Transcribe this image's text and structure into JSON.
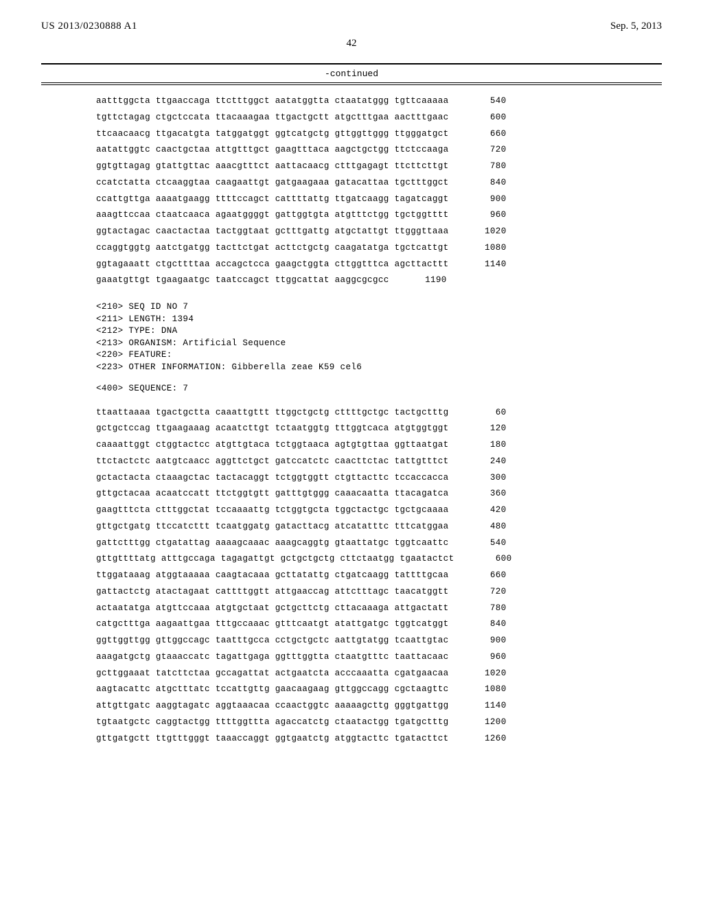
{
  "header": {
    "pub_number": "US 2013/0230888 A1",
    "pub_date": "Sep. 5, 2013",
    "page": "42"
  },
  "continued_label": "-continued",
  "sequence1": {
    "rows": [
      {
        "groups": "aatttggcta ttgaaccaga ttctttggct aatatggtta ctaatatggg tgttcaaaaa",
        "pos": "540"
      },
      {
        "groups": "tgttctagag ctgctccata ttacaaagaa ttgactgctt atgctttgaa aactttgaac",
        "pos": "600"
      },
      {
        "groups": "ttcaacaacg ttgacatgta tatggatggt ggtcatgctg gttggttggg ttgggatgct",
        "pos": "660"
      },
      {
        "groups": "aatattggtc caactgctaa attgtttgct gaagtttaca aagctgctgg ttctccaaga",
        "pos": "720"
      },
      {
        "groups": "ggtgttagag gtattgttac aaacgtttct aattacaacg ctttgagagt ttcttcttgt",
        "pos": "780"
      },
      {
        "groups": "ccatctatta ctcaaggtaa caagaattgt gatgaagaaa gatacattaa tgctttggct",
        "pos": "840"
      },
      {
        "groups": "ccattgttga aaaatgaagg ttttccagct cattttattg ttgatcaagg tagatcaggt",
        "pos": "900"
      },
      {
        "groups": "aaagttccaa ctaatcaaca agaatggggt gattggtgta atgtttctgg tgctggtttt",
        "pos": "960"
      },
      {
        "groups": "ggtactagac caactactaa tactggtaat gctttgattg atgctattgt ttgggttaaa",
        "pos": "1020"
      },
      {
        "groups": "ccaggtggtg aatctgatgg tacttctgat acttctgctg caagatatga tgctcattgt",
        "pos": "1080"
      },
      {
        "groups": "ggtagaaatt ctgcttttaa accagctcca gaagctggta cttggtttca agcttacttt",
        "pos": "1140"
      },
      {
        "groups": "gaaatgttgt tgaagaatgc taatccagct ttggcattat aaggcgcgcc",
        "pos": "1190"
      }
    ]
  },
  "meta": {
    "lines": [
      "<210> SEQ ID NO 7",
      "<211> LENGTH: 1394",
      "<212> TYPE: DNA",
      "<213> ORGANISM: Artificial Sequence",
      "<220> FEATURE:",
      "<223> OTHER INFORMATION: Gibberella zeae K59 cel6"
    ],
    "sequence_label": "<400> SEQUENCE: 7"
  },
  "sequence2": {
    "rows": [
      {
        "groups": "ttaattaaaa tgactgctta caaattgttt ttggctgctg cttttgctgc tactgctttg",
        "pos": "60"
      },
      {
        "groups": "gctgctccag ttgaagaaag acaatcttgt tctaatggtg tttggtcaca atgtggtggt",
        "pos": "120"
      },
      {
        "groups": "caaaattggt ctggtactcc atgttgtaca tctggtaaca agtgtgttaa ggttaatgat",
        "pos": "180"
      },
      {
        "groups": "ttctactctc aatgtcaacc aggttctgct gatccatctc caacttctac tattgtttct",
        "pos": "240"
      },
      {
        "groups": "gctactacta ctaaagctac tactacaggt tctggtggtt ctgttacttc tccaccacca",
        "pos": "300"
      },
      {
        "groups": "gttgctacaa acaatccatt ttctggtgtt gatttgtggg caaacaatta ttacagatca",
        "pos": "360"
      },
      {
        "groups": "gaagtttcta ctttggctat tccaaaattg tctggtgcta tggctactgc tgctgcaaaa",
        "pos": "420"
      },
      {
        "groups": "gttgctgatg ttccatcttt tcaatggatg gatacttacg atcatatttc tttcatggaa",
        "pos": "480"
      },
      {
        "groups": "gattctttgg ctgatattag aaaagcaaac aaagcaggtg gtaattatgc tggtcaattc",
        "pos": "540"
      },
      {
        "groups": "gttgttttatg atttgccaga tagagattgt gctgctgctg cttctaatgg tgaatactct",
        "pos": "600"
      },
      {
        "groups": "ttggataaag atggtaaaaa caagtacaaa gcttatattg ctgatcaagg tattttgcaa",
        "pos": "660"
      },
      {
        "groups": "gattactctg atactagaat cattttggtt attgaaccag attctttagc taacatggtt",
        "pos": "720"
      },
      {
        "groups": "actaatatga atgttccaaa atgtgctaat gctgcttctg cttacaaaga attgactatt",
        "pos": "780"
      },
      {
        "groups": "catgctttga aagaattgaa tttgccaaac gtttcaatgt atattgatgc tggtcatggt",
        "pos": "840"
      },
      {
        "groups": "ggttggttgg gttggccagc taatttgcca cctgctgctc aattgtatgg tcaattgtac",
        "pos": "900"
      },
      {
        "groups": "aaagatgctg gtaaaccatc tagattgaga ggtttggtta ctaatgtttc taattacaac",
        "pos": "960"
      },
      {
        "groups": "gcttggaaat tatcttctaa gccagattat actgaatcta acccaaatta cgatgaacaa",
        "pos": "1020"
      },
      {
        "groups": "aagtacattc atgctttatc tccattgttg gaacaagaag gttggccagg cgctaagttc",
        "pos": "1080"
      },
      {
        "groups": "attgttgatc aaggtagatc aggtaaacaa ccaactggtc aaaaagcttg gggtgattgg",
        "pos": "1140"
      },
      {
        "groups": "tgtaatgctc caggtactgg ttttggttta agaccatctg ctaatactgg tgatgctttg",
        "pos": "1200"
      },
      {
        "groups": "gttgatgctt ttgtttgggt taaaccaggt ggtgaatctg atggtacttc tgatacttct",
        "pos": "1260"
      }
    ]
  }
}
